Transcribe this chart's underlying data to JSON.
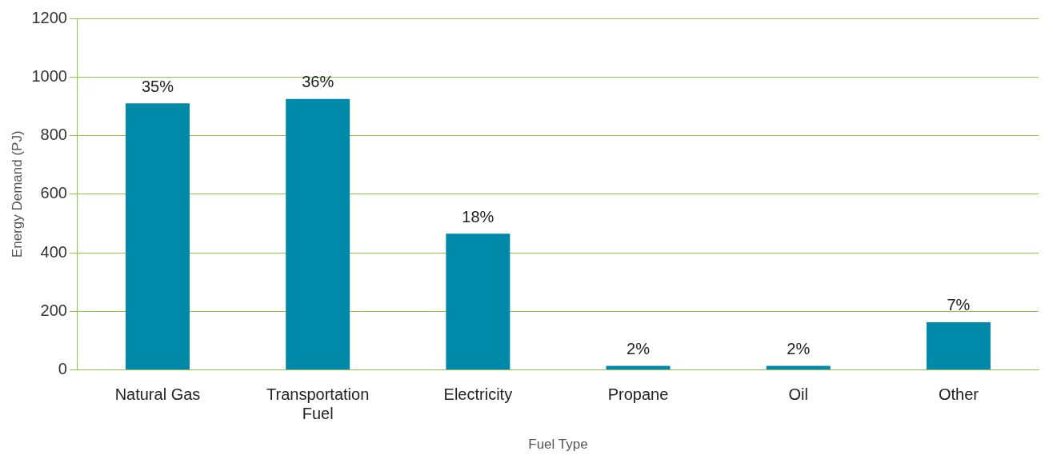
{
  "chart_data": {
    "type": "bar",
    "categories": [
      "Natural Gas",
      "Transportation Fuel",
      "Electricity",
      "Propane",
      "Oil",
      "Other"
    ],
    "values": [
      910,
      925,
      465,
      14,
      14,
      163
    ],
    "annotations": [
      {
        "text": "35%",
        "x": "Natural Gas",
        "y": 910
      },
      {
        "text": "36%",
        "x": "Transportation Fuel",
        "y": 925
      },
      {
        "text": "18%",
        "x": "Electricity",
        "y": 465
      },
      {
        "text": "2%",
        "x": "Propane",
        "y": 14
      },
      {
        "text": "2%",
        "x": "Oil",
        "y": 14
      },
      {
        "text": "7%",
        "x": "Other",
        "y": 163
      }
    ],
    "color": "#0089a8",
    "xlabel": "Fuel Type",
    "ylabel": "Energy Demand (PJ)",
    "ylim": [
      0,
      1200
    ],
    "yticks": [
      0,
      200,
      400,
      600,
      800,
      1000,
      1200
    ],
    "grid": "y",
    "legend": false
  }
}
